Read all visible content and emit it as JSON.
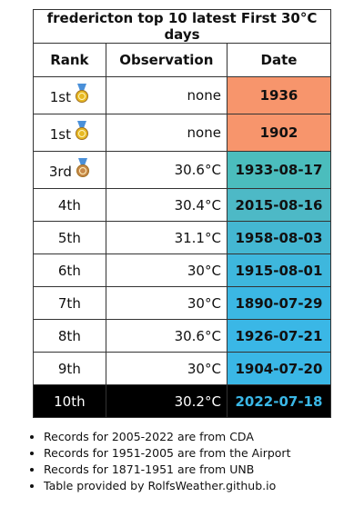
{
  "table": {
    "title": "fredericton top 10 latest First 30°C days",
    "header": [
      "Rank",
      "Observation",
      "Date"
    ],
    "rows": [
      [
        "1st",
        "none",
        "1936"
      ],
      [
        "1st",
        "none",
        "1902"
      ],
      [
        "3rd",
        "30.6°C",
        "1933-08-17"
      ],
      [
        "4th",
        "30.4°C",
        "2015-08-16"
      ],
      [
        "5th",
        "31.1°C",
        "1958-08-03"
      ],
      [
        "6th",
        "30°C",
        "1915-08-01"
      ],
      [
        "7th",
        "30°C",
        "1890-07-29"
      ],
      [
        "8th",
        "30.6°C",
        "1926-07-21"
      ],
      [
        "9th",
        "30°C",
        "1904-07-20"
      ],
      [
        "10th",
        "30.2°C",
        "2022-07-18"
      ]
    ]
  },
  "notes": [
    "Records for 2005-2022 are from CDA",
    "Records for 1951-2005 are from the Airport",
    "Records for 1871-1951 are from UNB",
    "Table provided by RolfsWeather.github.io"
  ]
}
